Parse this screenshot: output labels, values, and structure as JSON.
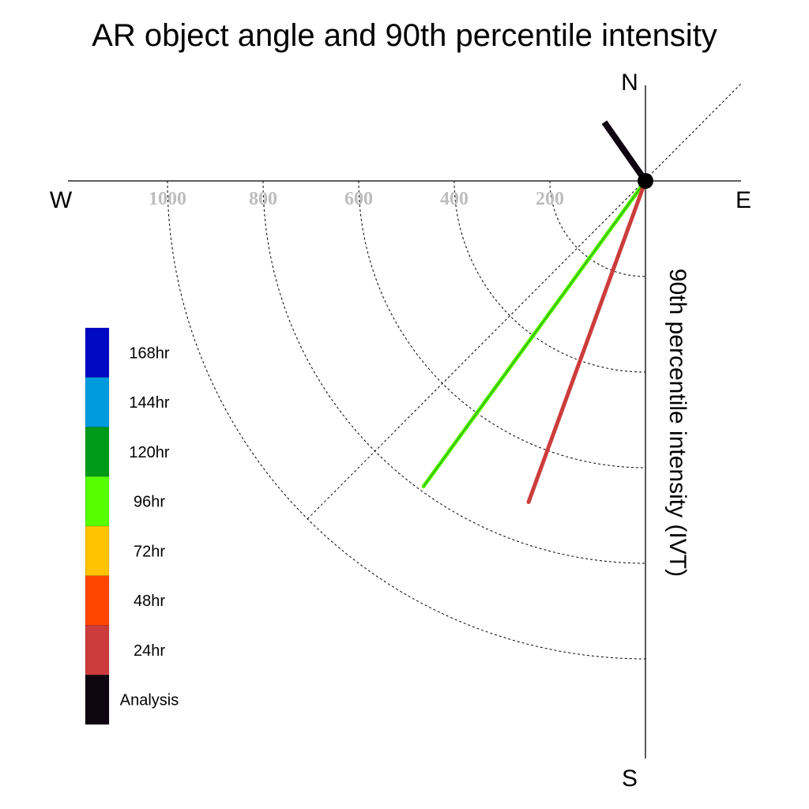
{
  "chart_data": {
    "type": "polar-vector",
    "title": "AR object angle and 90th percentile intensity",
    "ylabel": "90th percentile intensity (IVT)",
    "compass": {
      "north": "N",
      "south": "S",
      "east": "E",
      "west": "W"
    },
    "radial_ticks": [
      "1000",
      "800",
      "600",
      "400",
      "200"
    ],
    "radial_tick_values": [
      1000,
      800,
      600,
      400,
      200
    ],
    "radial_range": [
      0,
      1000
    ],
    "grid": true,
    "legend_position": "left",
    "legend": [
      {
        "label": "168hr",
        "color": "#0008c4"
      },
      {
        "label": "144hr",
        "color": "#009ade"
      },
      {
        "label": "120hr",
        "color": "#009a19"
      },
      {
        "label": "96hr",
        "color": "#56ff00"
      },
      {
        "label": "72hr",
        "color": "#ffc300"
      },
      {
        "label": "48hr",
        "color": "#ff4500"
      },
      {
        "label": "24hr",
        "color": "#cd3c3c"
      },
      {
        "label": "Analysis",
        "color": "#0f0510"
      }
    ],
    "series": [
      {
        "name": "Analysis",
        "angle_deg": -35,
        "intensity": 150,
        "color": "#0f0510"
      },
      {
        "name": "96hr",
        "angle_deg": 216,
        "intensity": 790,
        "color": "#56ff00"
      },
      {
        "name": "24hr",
        "angle_deg": 200,
        "intensity": 715,
        "color": "#cd3c3c"
      }
    ]
  }
}
